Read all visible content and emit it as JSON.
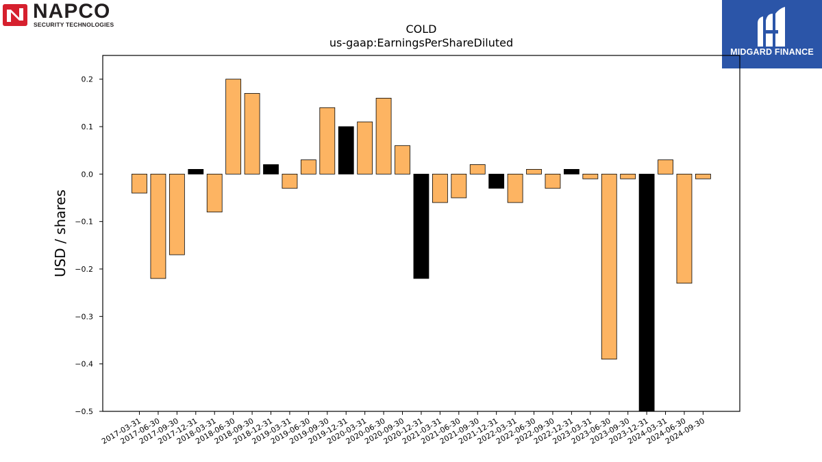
{
  "logos": {
    "left": {
      "name": "NAPCO",
      "tagline": "SECURITY TECHNOLOGIES"
    },
    "right": {
      "name": "MIDGARD FINANCE"
    }
  },
  "colors": {
    "positive_bar": "#FDB462",
    "highlight_bar": "#000000",
    "edge": "#000000",
    "midgard_bg": "#2B55A8",
    "napco_red": "#D6202E"
  },
  "chart_data": {
    "type": "bar",
    "title": "COLD",
    "subtitle": "us-gaap:EarningsPerShareDiluted",
    "xlabel": "",
    "ylabel": "USD / shares",
    "ylim": [
      -0.5,
      0.25
    ],
    "yticks": [
      -0.5,
      -0.4,
      -0.3,
      -0.2,
      -0.1,
      0.0,
      0.1,
      0.2
    ],
    "ytick_labels": [
      "−0.5",
      "−0.4",
      "−0.3",
      "−0.2",
      "−0.1",
      "0.0",
      "0.1",
      "0.2"
    ],
    "grid": false,
    "categories": [
      "2017-03-31",
      "2017-06-30",
      "2017-09-30",
      "2017-12-31",
      "2018-03-31",
      "2018-06-30",
      "2018-09-30",
      "2018-12-31",
      "2019-03-31",
      "2019-06-30",
      "2019-09-30",
      "2019-12-31",
      "2020-03-31",
      "2020-06-30",
      "2020-09-30",
      "2020-12-31",
      "2021-03-31",
      "2021-06-30",
      "2021-09-30",
      "2021-12-31",
      "2022-03-31",
      "2022-06-30",
      "2022-09-30",
      "2022-12-31",
      "2023-03-31",
      "2023-06-30",
      "2023-09-30",
      "2023-12-31",
      "2024-03-31",
      "2024-06-30",
      "2024-09-30"
    ],
    "values": [
      -0.04,
      -0.22,
      -0.17,
      0.01,
      -0.08,
      0.2,
      0.17,
      0.02,
      -0.03,
      0.03,
      0.14,
      0.1,
      0.11,
      0.16,
      0.06,
      -0.22,
      -0.06,
      -0.05,
      0.02,
      -0.03,
      -0.06,
      0.01,
      -0.03,
      0.01,
      -0.01,
      -0.39,
      -0.01,
      -0.5,
      0.03,
      -0.23,
      -0.01
    ],
    "highlight": [
      false,
      false,
      false,
      true,
      false,
      false,
      false,
      true,
      false,
      false,
      false,
      true,
      false,
      false,
      false,
      true,
      false,
      false,
      false,
      true,
      false,
      false,
      false,
      true,
      false,
      false,
      false,
      true,
      false,
      false,
      false
    ]
  }
}
